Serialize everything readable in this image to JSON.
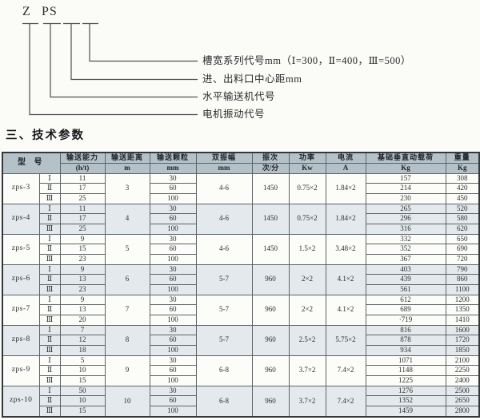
{
  "diagram": {
    "code_left": "Z",
    "code_right": "PS",
    "labels": [
      {
        "text": "槽宽系列代号mm（Ⅰ=300，Ⅱ=400，Ⅲ=500）"
      },
      {
        "text": "进、出料口中心距mm"
      },
      {
        "text": "水平输送机代号"
      },
      {
        "text": "电机振动代号"
      }
    ]
  },
  "section": {
    "title": "三、技术参数"
  },
  "table": {
    "header": {
      "model": "型 号",
      "cols": [
        {
          "label": "输送能力",
          "unit": "(h/t)"
        },
        {
          "label": "输送距离",
          "unit": "m"
        },
        {
          "label": "输送颗粒",
          "unit": "mm"
        },
        {
          "label": "双振幅",
          "unit": "mm"
        },
        {
          "label": "振次",
          "unit": "次/分"
        },
        {
          "label": "功率",
          "unit": "Kw"
        },
        {
          "label": "电流",
          "unit": "A"
        },
        {
          "label": "基础垂直动载荷",
          "unit": "Kg"
        },
        {
          "label": "重量",
          "unit": "Kg"
        }
      ]
    },
    "groups": [
      {
        "model": "zps-3",
        "distance": "3",
        "amplitude": "4-6",
        "frequency": "1450",
        "power": "0.75×2",
        "current": "1.84×2",
        "rows": [
          {
            "series": "Ⅰ",
            "capacity": "11",
            "particle": "30",
            "load": "157",
            "weight": "308"
          },
          {
            "series": "Ⅱ",
            "capacity": "17",
            "particle": "60",
            "load": "214",
            "weight": "420"
          },
          {
            "series": "Ⅲ",
            "capacity": "25",
            "particle": "100",
            "load": "230",
            "weight": "450"
          }
        ]
      },
      {
        "model": "zps-4",
        "distance": "4",
        "amplitude": "4-6",
        "frequency": "1450",
        "power": "0.75×2",
        "current": "1.84×2",
        "rows": [
          {
            "series": "Ⅰ",
            "capacity": "11",
            "particle": "30",
            "load": "265",
            "weight": "520"
          },
          {
            "series": "Ⅱ",
            "capacity": "17",
            "particle": "60",
            "load": "296",
            "weight": "580"
          },
          {
            "series": "Ⅲ",
            "capacity": "25",
            "particle": "100",
            "load": "316",
            "weight": "620"
          }
        ]
      },
      {
        "model": "zps-5",
        "distance": "5",
        "amplitude": "4-6",
        "frequency": "1450",
        "power": "1.5×2",
        "current": "3.48×2",
        "rows": [
          {
            "series": "Ⅰ",
            "capacity": "9",
            "particle": "30",
            "load": "332",
            "weight": "650"
          },
          {
            "series": "Ⅱ",
            "capacity": "15",
            "particle": "60",
            "load": "352",
            "weight": "690"
          },
          {
            "series": "Ⅲ",
            "capacity": "23",
            "particle": "100",
            "load": "367",
            "weight": "720"
          }
        ]
      },
      {
        "model": "zps-6",
        "distance": "6",
        "amplitude": "5-7",
        "frequency": "960",
        "power": "2×2",
        "current": "4.1×2",
        "rows": [
          {
            "series": "Ⅰ",
            "capacity": "9",
            "particle": "30",
            "load": "403",
            "weight": "790"
          },
          {
            "series": "Ⅱ",
            "capacity": "13",
            "particle": "60",
            "load": "439",
            "weight": "860"
          },
          {
            "series": "Ⅲ",
            "capacity": "23",
            "particle": "100",
            "load": "561",
            "weight": "1100"
          }
        ]
      },
      {
        "model": "zps-7",
        "distance": "7",
        "amplitude": "5-7",
        "frequency": "960",
        "power": "2×2",
        "current": "4.1×2",
        "rows": [
          {
            "series": "Ⅰ",
            "capacity": "9",
            "particle": "30",
            "load": "612",
            "weight": "1200"
          },
          {
            "series": "Ⅱ",
            "capacity": "13",
            "particle": "60",
            "load": "689",
            "weight": "1350"
          },
          {
            "series": "Ⅲ",
            "capacity": "20",
            "particle": "100",
            "load": "·719",
            "weight": "1410"
          }
        ]
      },
      {
        "model": "zps-8",
        "distance": "8",
        "amplitude": "5-7",
        "frequency": "960",
        "power": "2.5×2",
        "current": "5.75×2",
        "rows": [
          {
            "series": "Ⅰ",
            "capacity": "7",
            "particle": "30",
            "load": "816",
            "weight": "1600"
          },
          {
            "series": "Ⅱ",
            "capacity": "12",
            "particle": "60",
            "load": "878",
            "weight": "1720"
          },
          {
            "series": "Ⅲ",
            "capacity": "18",
            "particle": "100",
            "load": "934",
            "weight": "1850"
          }
        ]
      },
      {
        "model": "zps-9",
        "distance": "9",
        "amplitude": "6-8",
        "frequency": "960",
        "power": "3.7×2",
        "current": "7.4×2",
        "rows": [
          {
            "series": "Ⅰ",
            "capacity": "5",
            "particle": "30",
            "load": "1071",
            "weight": "2100"
          },
          {
            "series": "Ⅱ",
            "capacity": "10",
            "particle": "60",
            "load": "1148",
            "weight": "2250"
          },
          {
            "series": "Ⅲ",
            "capacity": "15",
            "particle": "100",
            "load": "1225",
            "weight": "2400"
          }
        ]
      },
      {
        "model": "zps-10",
        "distance": "10",
        "amplitude": "6-8",
        "frequency": "960",
        "power": "3.7×2",
        "current": "7.4×2",
        "rows": [
          {
            "series": "Ⅰ",
            "capacity": "50",
            "particle": "30",
            "load": "1276",
            "weight": "2500"
          },
          {
            "series": "Ⅱ",
            "capacity": "10",
            "particle": "60",
            "load": "1352",
            "weight": "2650"
          },
          {
            "series": "Ⅲ",
            "capacity": "15",
            "particle": "100",
            "load": "1459",
            "weight": "2800"
          }
        ]
      }
    ]
  }
}
